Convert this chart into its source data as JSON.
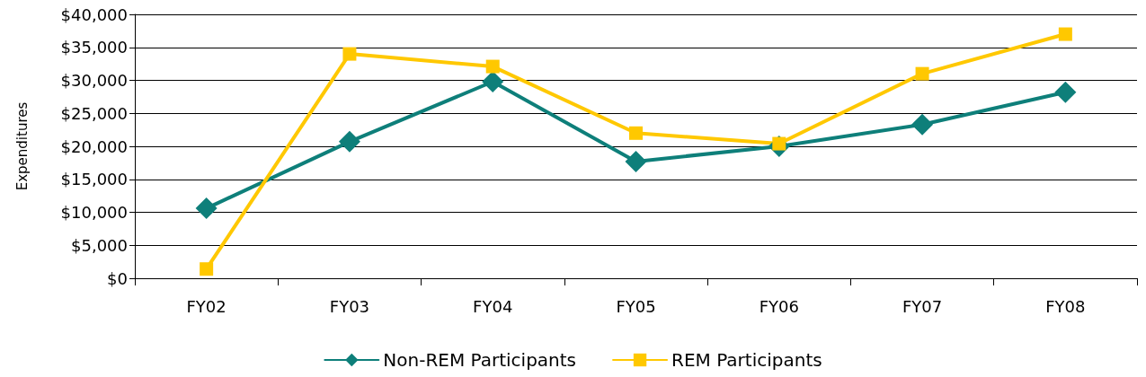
{
  "chart_data": {
    "type": "line",
    "ylabel": "Expenditures",
    "categories": [
      "FY02",
      "FY03",
      "FY04",
      "FY05",
      "FY06",
      "FY07",
      "FY08"
    ],
    "series": [
      {
        "name": "Non-REM Participants",
        "color": "#0e7f7a",
        "marker": "diamond",
        "values": [
          10600,
          20700,
          29800,
          17700,
          20000,
          23300,
          28200
        ]
      },
      {
        "name": "REM Participants",
        "color": "#ffc800",
        "marker": "square",
        "values": [
          1400,
          34000,
          32100,
          22000,
          20400,
          31000,
          37000
        ]
      }
    ],
    "ylim": [
      0,
      40000
    ],
    "yticks": [
      {
        "value": 0,
        "label": "$0"
      },
      {
        "value": 5000,
        "label": "$5,000"
      },
      {
        "value": 10000,
        "label": "$10,000"
      },
      {
        "value": 15000,
        "label": "$15,000"
      },
      {
        "value": 20000,
        "label": "$20,000"
      },
      {
        "value": 25000,
        "label": "$25,000"
      },
      {
        "value": 30000,
        "label": "$30,000"
      },
      {
        "value": 35000,
        "label": "$35,000"
      },
      {
        "value": 40000,
        "label": "$40,000"
      }
    ],
    "grid": "y",
    "legend": "bottom",
    "line_style": "solid"
  }
}
